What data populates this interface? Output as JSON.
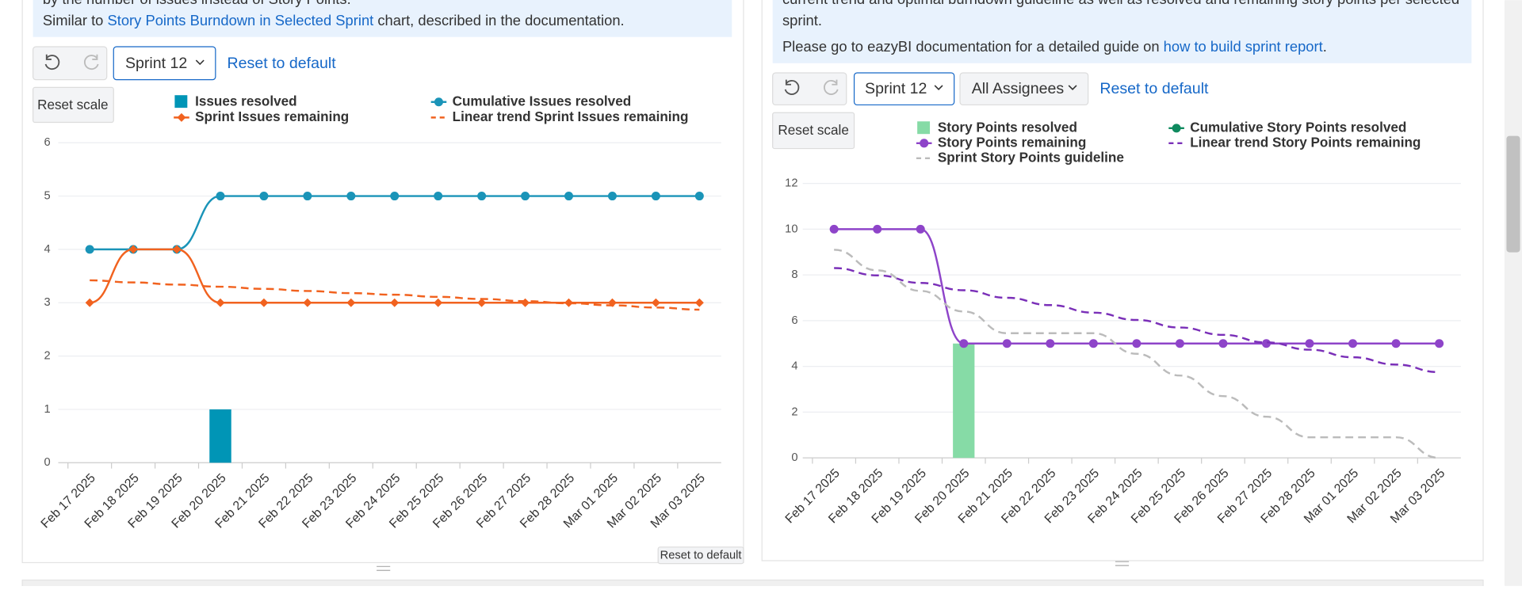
{
  "left_panel": {
    "intro_cut": "by the number of issues instead of Story Points.",
    "intro_prefix": "Similar to ",
    "intro_link": "Story Points Burndown in Selected Sprint",
    "intro_suffix": " chart, described in the documentation.",
    "sprint_select": "Sprint 12",
    "reset_link": "Reset to default",
    "reset_scale": "Reset scale",
    "reset_small": "Reset to default"
  },
  "right_panel": {
    "intro_cut": "current trend and optimal burndown guideline as well as resolved and remaining story points per selected",
    "intro_line2": "sprint.",
    "guide_prefix": "Please go to eazyBI documentation for a detailed guide on ",
    "guide_link": "how to build sprint report",
    "guide_suffix": ".",
    "sprint_select": "Sprint 12",
    "assignee_select": "All Assignees",
    "reset_link": "Reset to default",
    "reset_scale": "Reset scale"
  },
  "chart_data": [
    {
      "type": "combo",
      "categories": [
        "Feb 17 2025",
        "Feb 18 2025",
        "Feb 19 2025",
        "Feb 20 2025",
        "Feb 21 2025",
        "Feb 22 2025",
        "Feb 23 2025",
        "Feb 24 2025",
        "Feb 25 2025",
        "Feb 26 2025",
        "Feb 27 2025",
        "Feb 28 2025",
        "Mar 01 2025",
        "Mar 02 2025",
        "Mar 03 2025"
      ],
      "ylim": [
        0,
        6
      ],
      "yticks": [
        0,
        1,
        2,
        3,
        4,
        5,
        6
      ],
      "grid": true,
      "series": [
        {
          "name": "Issues resolved",
          "kind": "bar",
          "color": "#0095b6",
          "values": [
            0,
            0,
            0,
            1,
            0,
            0,
            0,
            0,
            0,
            0,
            0,
            0,
            0,
            0,
            0
          ]
        },
        {
          "name": "Cumulative Issues resolved",
          "kind": "line",
          "marker": "circle",
          "color": "#1a94b8",
          "values": [
            4,
            4,
            4,
            5,
            5,
            5,
            5,
            5,
            5,
            5,
            5,
            5,
            5,
            5,
            5
          ]
        },
        {
          "name": "Sprint Issues remaining",
          "kind": "line",
          "marker": "diamond",
          "color": "#f1621f",
          "values": [
            3,
            4,
            4,
            3,
            3,
            3,
            3,
            3,
            3,
            3,
            3,
            3,
            3,
            3,
            3
          ]
        },
        {
          "name": "Linear trend Sprint Issues remaining",
          "kind": "line",
          "marker": "none",
          "dashed": true,
          "color": "#f1621f",
          "values": [
            3.42,
            3.38,
            3.34,
            3.3,
            3.26,
            3.22,
            3.18,
            3.15,
            3.11,
            3.07,
            3.03,
            2.99,
            2.95,
            2.91,
            2.87
          ]
        }
      ]
    },
    {
      "type": "combo",
      "categories": [
        "Feb 17 2025",
        "Feb 18 2025",
        "Feb 19 2025",
        "Feb 20 2025",
        "Feb 21 2025",
        "Feb 22 2025",
        "Feb 23 2025",
        "Feb 24 2025",
        "Feb 25 2025",
        "Feb 26 2025",
        "Feb 27 2025",
        "Feb 28 2025",
        "Mar 01 2025",
        "Mar 02 2025",
        "Mar 03 2025"
      ],
      "ylim": [
        0,
        12
      ],
      "yticks": [
        0,
        2,
        4,
        6,
        8,
        10,
        12
      ],
      "grid": true,
      "series": [
        {
          "name": "Story Points resolved",
          "kind": "bar",
          "color": "#86dba6",
          "values": [
            0,
            0,
            0,
            5,
            0,
            0,
            0,
            0,
            0,
            0,
            0,
            0,
            0,
            0,
            0
          ]
        },
        {
          "name": "Cumulative Story Points resolved",
          "kind": "line",
          "marker": "circle",
          "color": "#0f8a5f",
          "values": [
            null,
            null,
            null,
            null,
            null,
            null,
            null,
            null,
            null,
            null,
            null,
            null,
            null,
            null,
            null
          ]
        },
        {
          "name": "Story Points remaining",
          "kind": "line",
          "marker": "circle",
          "color": "#8e44c9",
          "values": [
            10,
            10,
            10,
            5,
            5,
            5,
            5,
            5,
            5,
            5,
            5,
            5,
            5,
            5,
            5
          ]
        },
        {
          "name": "Linear trend Story Points remaining",
          "kind": "line",
          "marker": "none",
          "dashed": true,
          "color": "#7a2fb8",
          "values": [
            8.3,
            7.98,
            7.65,
            7.33,
            7.0,
            6.68,
            6.35,
            6.03,
            5.7,
            5.38,
            5.05,
            4.73,
            4.4,
            4.08,
            3.75
          ]
        },
        {
          "name": "Sprint Story Points guideline",
          "kind": "line",
          "marker": "none",
          "dashed": true,
          "color": "#bbbbbb",
          "values": [
            9.1,
            8.2,
            7.3,
            6.4,
            5.45,
            5.45,
            5.45,
            4.55,
            3.6,
            2.7,
            1.8,
            0.9,
            0.9,
            0.9,
            0
          ]
        }
      ]
    }
  ]
}
